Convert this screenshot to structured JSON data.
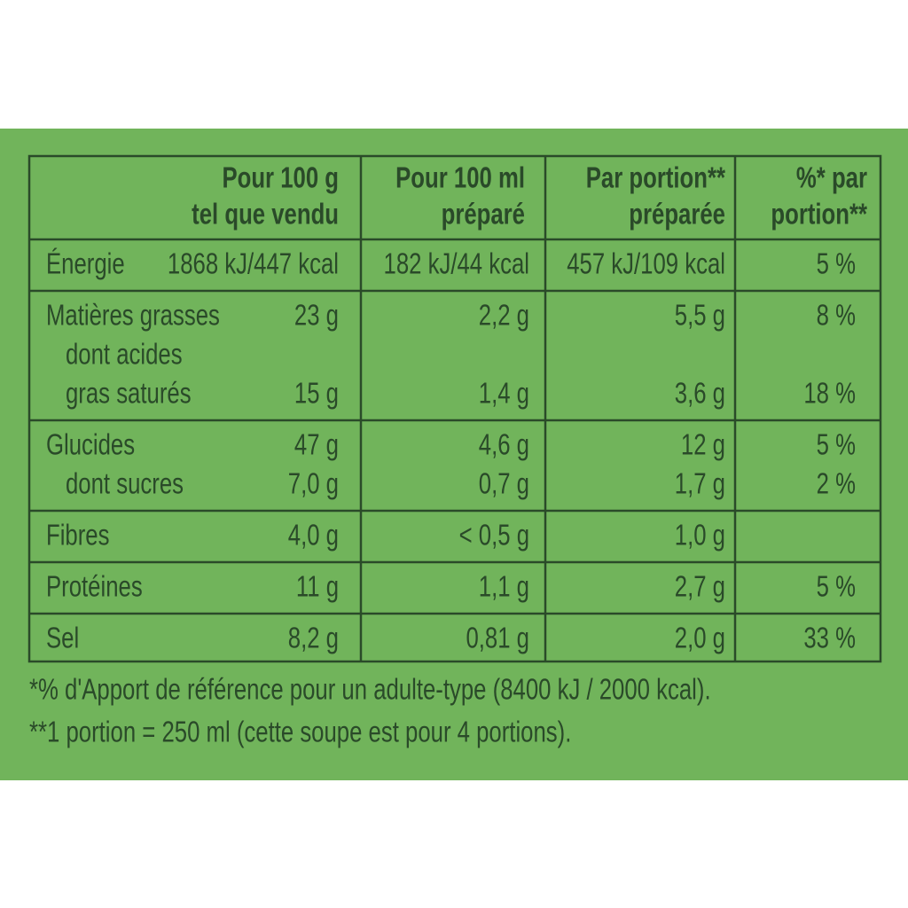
{
  "table": {
    "header": [
      [
        "Pour 100 g",
        "tel que vendu"
      ],
      [
        "Pour 100 ml",
        "préparé"
      ],
      [
        "Par portion**",
        "préparée"
      ],
      [
        "%* par",
        "portion**"
      ]
    ],
    "groups": [
      [
        {
          "label": [
            "Énergie"
          ],
          "values": [
            "1868 kJ/447 kcal",
            "182 kJ/44 kcal",
            "457 kJ/109 kcal",
            "5 %"
          ]
        }
      ],
      [
        {
          "label": [
            "Matières grasses"
          ],
          "values": [
            "23 g",
            "2,2 g",
            "5,5 g",
            "8 %"
          ]
        },
        {
          "label": [
            "dont acides",
            "gras saturés"
          ],
          "values": [
            "15 g",
            "1,4 g",
            "3,6 g",
            "18 %"
          ]
        }
      ],
      [
        {
          "label": [
            "Glucides"
          ],
          "values": [
            "47 g",
            "4,6 g",
            "12 g",
            "5 %"
          ]
        },
        {
          "label": [
            "dont sucres"
          ],
          "values": [
            "7,0 g",
            "0,7 g",
            "1,7 g",
            "2 %"
          ]
        }
      ],
      [
        {
          "label": [
            "Fibres"
          ],
          "values": [
            "4,0 g",
            "< 0,5 g",
            "1,0 g"
          ]
        }
      ],
      [
        {
          "label": [
            "Protéines"
          ],
          "values": [
            "11 g",
            "1,1 g",
            "2,7 g",
            "5 %"
          ]
        }
      ],
      [
        {
          "label": [
            "Sel"
          ],
          "values": [
            "8,2 g",
            "0,81 g",
            "2,0 g",
            "33 %"
          ]
        }
      ]
    ]
  },
  "footnotes": [
    "*% d'Apport de référence pour un adulte-type (8400 kJ / 2000 kcal).",
    "**1 portion = 250 ml (cette soupe est pour 4 portions)."
  ]
}
